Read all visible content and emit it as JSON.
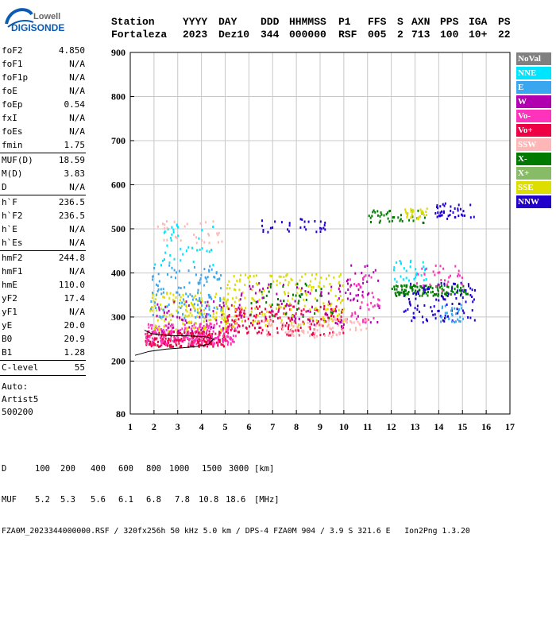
{
  "logo": {
    "top": "Lowell",
    "bottom": "DIGISONDE"
  },
  "header": {
    "labels": [
      "Station",
      "YYYY",
      "DAY",
      "DDD",
      "HHMMSS",
      "P1",
      "FFS",
      "S",
      "AXN",
      "PPS",
      "IGA",
      "PS"
    ],
    "values": [
      "Fortaleza",
      "2023",
      "Dez10",
      "344",
      "000000",
      "RSF",
      "005",
      "2",
      "713",
      "100",
      "10+",
      "22"
    ]
  },
  "params_group1": [
    {
      "name": "foF2",
      "value": "4.850"
    },
    {
      "name": "foF1",
      "value": "N/A"
    },
    {
      "name": "foF1p",
      "value": "N/A"
    },
    {
      "name": "foE",
      "value": "N/A"
    },
    {
      "name": "foEp",
      "value": "0.54"
    },
    {
      "name": "fxI",
      "value": "N/A"
    },
    {
      "name": "foEs",
      "value": "N/A"
    },
    {
      "name": "fmin",
      "value": "1.75"
    }
  ],
  "params_group2": [
    {
      "name": "MUF(D)",
      "value": "18.59"
    },
    {
      "name": "M(D)",
      "value": "3.83"
    },
    {
      "name": "D",
      "value": "N/A"
    }
  ],
  "params_group3": [
    {
      "name": "h`F",
      "value": "236.5"
    },
    {
      "name": "h`F2",
      "value": "236.5"
    },
    {
      "name": "h`E",
      "value": "N/A"
    },
    {
      "name": "h`Es",
      "value": "N/A"
    }
  ],
  "params_group4": [
    {
      "name": "hmF2",
      "value": "244.8"
    },
    {
      "name": "hmF1",
      "value": "N/A"
    },
    {
      "name": "hmE",
      "value": "110.0"
    },
    {
      "name": "yF2",
      "value": "17.4"
    },
    {
      "name": "yF1",
      "value": "N/A"
    },
    {
      "name": "yE",
      "value": "20.0"
    },
    {
      "name": "B0",
      "value": "20.9"
    },
    {
      "name": "B1",
      "value": "1.28"
    }
  ],
  "clevel": {
    "name": "C-level",
    "value": "55"
  },
  "auto": {
    "line1": "Auto:",
    "line2": "Artist5",
    "line3": "500200"
  },
  "legend": [
    {
      "label": "NoVal",
      "color": "#808080"
    },
    {
      "label": "NNE",
      "color": "#00e5ff"
    },
    {
      "label": "E",
      "color": "#3aa6f0"
    },
    {
      "label": "W",
      "color": "#b000b0"
    },
    {
      "label": "Vo-",
      "color": "#ff33bb"
    },
    {
      "label": "Vo+",
      "color": "#ee0044"
    },
    {
      "label": "SSW",
      "color": "#ffb6b6"
    },
    {
      "label": "X-",
      "color": "#007a00"
    },
    {
      "label": "X+",
      "color": "#88bb66"
    },
    {
      "label": "SSE",
      "color": "#dddd00"
    },
    {
      "label": "NNW",
      "color": "#2200cc"
    }
  ],
  "footer": {
    "d_label": "D",
    "d_values": [
      "100",
      "200",
      "400",
      "600",
      "800",
      "1000",
      "1500",
      "3000",
      "[km]"
    ],
    "muf_label": "MUF",
    "muf_values": [
      "5.2",
      "5.3",
      "5.6",
      "6.1",
      "6.8",
      "7.8",
      "10.8",
      "18.6",
      "[MHz]"
    ],
    "info": "FZA0M_2023344000000.RSF / 320fx256h 50 kHz 5.0 km / DPS-4 FZA0M 904 / 3.9 S 321.6 E   Ion2Png 1.3.20"
  },
  "chart_data": {
    "type": "scatter",
    "title": "",
    "xlabel": "",
    "ylabel": "",
    "xlim": [
      1,
      17
    ],
    "ylim": [
      80,
      900
    ],
    "x_ticks": [
      1,
      2,
      3,
      4,
      5,
      6,
      7,
      8,
      9,
      10,
      11,
      12,
      13,
      14,
      15,
      16,
      17
    ],
    "y_ticks": [
      80,
      200,
      300,
      400,
      500,
      600,
      700,
      800,
      900
    ],
    "grid": true,
    "legend_placement": "right",
    "clusters": [
      {
        "series": "Vo+",
        "x_range": [
          1.6,
          5.0
        ],
        "y_range": [
          235,
          270
        ],
        "n": 260
      },
      {
        "series": "Vo-",
        "x_range": [
          1.6,
          5.5
        ],
        "y_range": [
          240,
          290
        ],
        "n": 200
      },
      {
        "series": "SSE",
        "x_range": [
          1.8,
          5.2
        ],
        "y_range": [
          270,
          360
        ],
        "n": 150
      },
      {
        "series": "E",
        "x_range": [
          1.8,
          4.8
        ],
        "y_range": [
          300,
          420
        ],
        "n": 120
      },
      {
        "series": "NNE",
        "x_range": [
          2.0,
          4.5
        ],
        "y_range": [
          420,
          520
        ],
        "n": 40
      },
      {
        "series": "SSW",
        "x_range": [
          2.0,
          5.0
        ],
        "y_range": [
          470,
          520
        ],
        "n": 30
      },
      {
        "series": "W",
        "x_range": [
          2.0,
          5.0
        ],
        "y_range": [
          270,
          340
        ],
        "n": 50
      },
      {
        "series": "Vo+",
        "x_range": [
          5.0,
          10.0
        ],
        "y_range": [
          260,
          330
        ],
        "n": 200
      },
      {
        "series": "SSE",
        "x_range": [
          5.0,
          10.0
        ],
        "y_range": [
          280,
          400
        ],
        "n": 180
      },
      {
        "series": "SSW",
        "x_range": [
          6.5,
          10.0
        ],
        "y_range": [
          255,
          300
        ],
        "n": 80
      },
      {
        "series": "W",
        "x_range": [
          5.5,
          10.0
        ],
        "y_range": [
          280,
          380
        ],
        "n": 70
      },
      {
        "series": "X-",
        "x_range": [
          6.0,
          9.5
        ],
        "y_range": [
          300,
          380
        ],
        "n": 40
      },
      {
        "series": "W",
        "x_range": [
          10.0,
          11.5
        ],
        "y_range": [
          290,
          420
        ],
        "n": 40
      },
      {
        "series": "Vo-",
        "x_range": [
          10.0,
          11.5
        ],
        "y_range": [
          290,
          400
        ],
        "n": 40
      },
      {
        "series": "SSW",
        "x_range": [
          10.0,
          11.0
        ],
        "y_range": [
          270,
          300
        ],
        "n": 20
      },
      {
        "series": "X-",
        "x_range": [
          12.0,
          15.2
        ],
        "y_range": [
          350,
          375
        ],
        "n": 120
      },
      {
        "series": "NNW",
        "x_range": [
          12.5,
          15.5
        ],
        "y_range": [
          290,
          380
        ],
        "n": 100
      },
      {
        "series": "NNE",
        "x_range": [
          12.0,
          13.5
        ],
        "y_range": [
          380,
          430
        ],
        "n": 30
      },
      {
        "series": "E",
        "x_range": [
          14.0,
          15.0
        ],
        "y_range": [
          290,
          330
        ],
        "n": 30
      },
      {
        "series": "Vo-",
        "x_range": [
          13.0,
          15.0
        ],
        "y_range": [
          360,
          420
        ],
        "n": 30
      },
      {
        "series": "X-",
        "x_range": [
          11.0,
          13.5
        ],
        "y_range": [
          515,
          545
        ],
        "n": 40
      },
      {
        "series": "SSE",
        "x_range": [
          12.5,
          13.5
        ],
        "y_range": [
          525,
          550
        ],
        "n": 30
      },
      {
        "series": "NNW",
        "x_range": [
          13.8,
          15.5
        ],
        "y_range": [
          525,
          560
        ],
        "n": 40
      },
      {
        "series": "NNW",
        "x_range": [
          6.5,
          9.2
        ],
        "y_range": [
          495,
          525
        ],
        "n": 30
      }
    ],
    "trace": {
      "x": [
        1.2,
        1.8,
        2.5,
        3.2,
        3.8,
        4.3,
        4.5,
        4.2,
        3.5,
        2.6,
        1.9,
        1.6
      ],
      "y": [
        213,
        222,
        227,
        230,
        233,
        238,
        250,
        255,
        257,
        258,
        262,
        270
      ]
    }
  }
}
